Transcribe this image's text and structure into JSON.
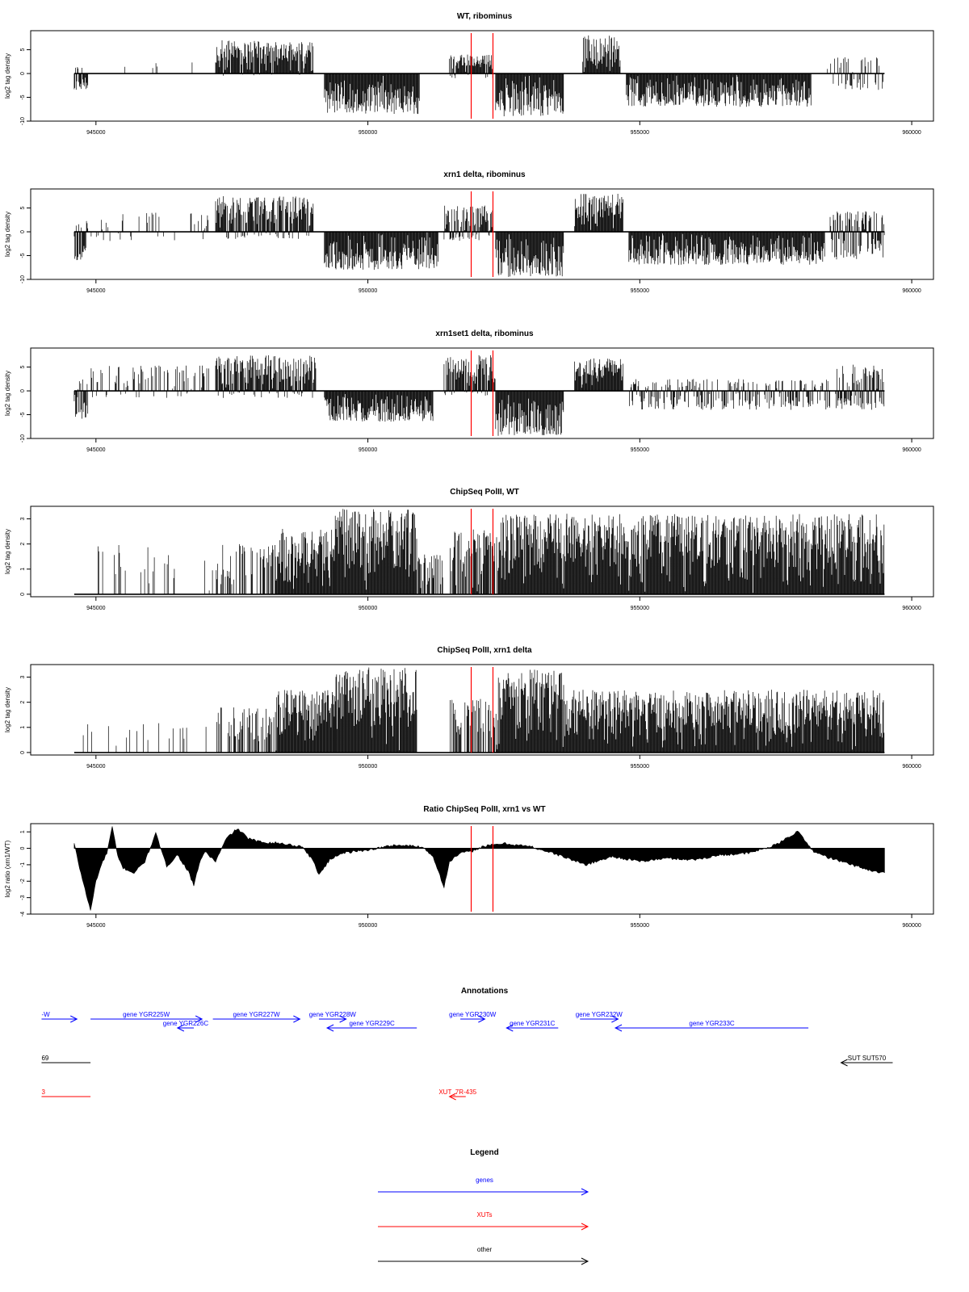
{
  "colors": {
    "axis": "#000000",
    "data": "#000000",
    "marker": "#ff0000",
    "genes": "#0000ff",
    "xuts": "#ff0000",
    "other": "#000000"
  },
  "chart_data": [
    {
      "type": "bar",
      "title": "WT, ribominus",
      "ylabel": "log2 tag density",
      "xlim": [
        943800,
        960400
      ],
      "ylim": [
        -10,
        9
      ],
      "yticks": [
        -10,
        -5,
        0,
        5
      ],
      "xticks": [
        "945000",
        "950000",
        "955000",
        "960000"
      ],
      "marker_lines_x": [
        951900,
        952300
      ],
      "segments": [
        {
          "x0": 944600,
          "x1": 944850,
          "lo": -3.5,
          "hi": 1.5
        },
        {
          "x0": 945450,
          "x1": 947150,
          "lo": 0,
          "hi": 2.5,
          "density": 0.06
        },
        {
          "x0": 947200,
          "x1": 949000,
          "lo": -0.5,
          "hi": 7
        },
        {
          "x0": 949200,
          "x1": 950950,
          "lo": -8.5,
          "hi": 0
        },
        {
          "x0": 951500,
          "x1": 952300,
          "lo": -1,
          "hi": 4
        },
        {
          "x0": 952350,
          "x1": 953600,
          "lo": -9,
          "hi": 0
        },
        {
          "x0": 953950,
          "x1": 954650,
          "lo": 0,
          "hi": 8
        },
        {
          "x0": 954750,
          "x1": 958150,
          "lo": -7,
          "hi": 0
        },
        {
          "x0": 958450,
          "x1": 959500,
          "lo": -3.5,
          "hi": 3.5,
          "density": 0.5
        }
      ]
    },
    {
      "type": "bar",
      "title": "xrn1 delta, ribominus",
      "ylabel": "log2 tag density",
      "xlim": [
        943800,
        960400
      ],
      "ylim": [
        -10,
        9
      ],
      "yticks": [
        -10,
        -5,
        0,
        5
      ],
      "xticks": [
        "945000",
        "950000",
        "955000",
        "960000"
      ],
      "marker_lines_x": [
        951900,
        952300
      ],
      "segments": [
        {
          "x0": 944600,
          "x1": 944850,
          "lo": -6,
          "hi": 2.5
        },
        {
          "x0": 944900,
          "x1": 947100,
          "lo": -2,
          "hi": 4,
          "density": 0.22
        },
        {
          "x0": 947200,
          "x1": 949000,
          "lo": -1.5,
          "hi": 7.5
        },
        {
          "x0": 949200,
          "x1": 951300,
          "lo": -8,
          "hi": 0
        },
        {
          "x0": 951400,
          "x1": 952300,
          "lo": -2,
          "hi": 5.5
        },
        {
          "x0": 952350,
          "x1": 953600,
          "lo": -9.5,
          "hi": 0
        },
        {
          "x0": 953800,
          "x1": 954700,
          "lo": 0,
          "hi": 8
        },
        {
          "x0": 954800,
          "x1": 958400,
          "lo": -7,
          "hi": 0
        },
        {
          "x0": 958500,
          "x1": 959500,
          "lo": -6,
          "hi": 4.5
        }
      ]
    },
    {
      "type": "bar",
      "title": "xrn1set1 delta, ribominus",
      "ylabel": "log2 tag density",
      "xlim": [
        943800,
        960400
      ],
      "ylim": [
        -10,
        9
      ],
      "yticks": [
        -10,
        -5,
        0,
        5
      ],
      "xticks": [
        "945000",
        "950000",
        "955000",
        "960000"
      ],
      "marker_lines_x": [
        951900,
        952300
      ],
      "segments": [
        {
          "x0": 944600,
          "x1": 944850,
          "lo": -6,
          "hi": 2.5
        },
        {
          "x0": 944900,
          "x1": 947100,
          "lo": -1.5,
          "hi": 5.5,
          "density": 0.35
        },
        {
          "x0": 947200,
          "x1": 949050,
          "lo": -1.5,
          "hi": 7.5
        },
        {
          "x0": 949200,
          "x1": 951200,
          "lo": -6.5,
          "hi": 0
        },
        {
          "x0": 951400,
          "x1": 952350,
          "lo": -1,
          "hi": 7.5
        },
        {
          "x0": 952350,
          "x1": 953600,
          "lo": -9.5,
          "hi": 0
        },
        {
          "x0": 953800,
          "x1": 954700,
          "lo": 0,
          "hi": 7
        },
        {
          "x0": 954800,
          "x1": 958500,
          "lo": -4,
          "hi": 2.5,
          "density": 0.7
        },
        {
          "x0": 958600,
          "x1": 959500,
          "lo": -4,
          "hi": 5.5
        }
      ]
    },
    {
      "type": "bar",
      "title": "ChipSeq PolII, WT",
      "ylabel": "log2 tag density",
      "xlim": [
        943800,
        960400
      ],
      "ylim": [
        -0.1,
        3.5
      ],
      "yticks": [
        0.0,
        1.0,
        2.0,
        3.0
      ],
      "xticks": [
        "945000",
        "950000",
        "955000",
        "960000"
      ],
      "marker_lines_x": [
        951900,
        952300
      ],
      "segments": [
        {
          "x0": 944600,
          "x1": 947200,
          "lo": 0,
          "hi": 2,
          "density": 0.09
        },
        {
          "x0": 947200,
          "x1": 948300,
          "lo": 0,
          "hi": 2,
          "density": 0.45
        },
        {
          "x0": 948300,
          "x1": 949400,
          "lo": 0,
          "hi": 2.6
        },
        {
          "x0": 949400,
          "x1": 950900,
          "lo": 0,
          "hi": 3.4
        },
        {
          "x0": 950900,
          "x1": 951400,
          "lo": 0,
          "hi": 1.6,
          "density": 0.5
        },
        {
          "x0": 951500,
          "x1": 952400,
          "lo": 0,
          "hi": 2.6,
          "density": 0.7
        },
        {
          "x0": 952400,
          "x1": 959500,
          "lo": 0,
          "hi": 3.2
        }
      ]
    },
    {
      "type": "bar",
      "title": "ChipSeq PolII, xrn1 delta",
      "ylabel": "log2 tag density",
      "xlim": [
        943800,
        960400
      ],
      "ylim": [
        -0.1,
        3.5
      ],
      "yticks": [
        0.0,
        1.0,
        2.0,
        3.0
      ],
      "xticks": [
        "945000",
        "950000",
        "955000",
        "960000"
      ],
      "marker_lines_x": [
        951900,
        952300
      ],
      "segments": [
        {
          "x0": 944600,
          "x1": 947200,
          "lo": 0,
          "hi": 1.2,
          "density": 0.08
        },
        {
          "x0": 947200,
          "x1": 948300,
          "lo": 0,
          "hi": 1.8,
          "density": 0.5
        },
        {
          "x0": 948300,
          "x1": 949400,
          "lo": 0,
          "hi": 2.5
        },
        {
          "x0": 949400,
          "x1": 950900,
          "lo": 0,
          "hi": 3.4
        },
        {
          "x0": 951500,
          "x1": 952400,
          "lo": 0,
          "hi": 2.2,
          "density": 0.6
        },
        {
          "x0": 952400,
          "x1": 953600,
          "lo": 0,
          "hi": 3.3
        },
        {
          "x0": 953600,
          "x1": 959500,
          "lo": 0,
          "hi": 2.5
        }
      ]
    },
    {
      "type": "area",
      "title": "Ratio ChipSeq PolII, xrn1 vs WT",
      "ylabel": "log2 ratio (xrn1/WT)",
      "xlim": [
        943800,
        960400
      ],
      "ylim": [
        -4,
        1.5
      ],
      "yticks": [
        -4,
        -3,
        -2,
        -1,
        0,
        1
      ],
      "xticks": [
        "945000",
        "950000",
        "955000",
        "960000"
      ],
      "marker_lines_x": [
        951900,
        952300
      ],
      "profile": {
        "x": [
          944600,
          944700,
          944800,
          944900,
          945000,
          945100,
          945200,
          945300,
          945400,
          945500,
          945700,
          945900,
          946100,
          946300,
          946500,
          946700,
          946800,
          946900,
          947000,
          947200,
          947400,
          947600,
          947800,
          948000,
          948400,
          948800,
          949000,
          949100,
          949300,
          949500,
          950000,
          950500,
          951000,
          951200,
          951300,
          951400,
          951500,
          951700,
          951900,
          952100,
          952300,
          952500,
          953000,
          953500,
          954000,
          954500,
          955000,
          955500,
          956000,
          956500,
          957000,
          957500,
          957800,
          957900,
          958000,
          958200,
          958500,
          959000,
          959300,
          959500
        ],
        "y": [
          0.3,
          -1.2,
          -2.5,
          -3.8,
          -2.0,
          -1.0,
          -0.3,
          1.3,
          -0.5,
          -1.2,
          -1.5,
          -0.8,
          0.9,
          -1.1,
          -0.4,
          -1.4,
          -2.3,
          -0.9,
          -0.2,
          -0.8,
          0.6,
          1.2,
          0.6,
          0.4,
          0.3,
          0.1,
          -0.8,
          -1.6,
          -0.7,
          -0.3,
          -0.1,
          0.2,
          0.1,
          -0.5,
          -1.4,
          -2.4,
          -0.8,
          -0.3,
          -0.2,
          0.1,
          0.2,
          0.3,
          0.1,
          -0.4,
          -1.0,
          -0.5,
          -0.8,
          -0.6,
          -0.7,
          -0.4,
          -0.3,
          0.2,
          0.8,
          1.1,
          0.6,
          -0.2,
          -0.6,
          -1.1,
          -1.4,
          -1.5
        ]
      }
    }
  ],
  "annotations": {
    "title": "Annotations",
    "genes": [
      {
        "label": "-W",
        "x0": 944000,
        "x1": 944650,
        "dir": "right",
        "row": 1
      },
      {
        "label": "gene YGR225W",
        "x0": 944900,
        "x1": 946950,
        "dir": "right",
        "row": 1
      },
      {
        "label": "gene YGR226C",
        "x0": 946500,
        "x1": 946800,
        "dir": "left",
        "row": 2
      },
      {
        "label": "gene YGR227W",
        "x0": 947150,
        "x1": 948750,
        "dir": "right",
        "row": 1
      },
      {
        "label": "gene YGR228W",
        "x0": 949100,
        "x1": 949600,
        "dir": "right",
        "row": 1
      },
      {
        "label": "gene YGR229C",
        "x0": 949250,
        "x1": 950900,
        "dir": "left",
        "row": 2
      },
      {
        "label": "gene YGR230W",
        "x0": 951700,
        "x1": 952150,
        "dir": "right",
        "row": 1
      },
      {
        "label": "gene YGR231C",
        "x0": 952550,
        "x1": 953500,
        "dir": "left",
        "row": 2
      },
      {
        "label": "gene YGR232W",
        "x0": 953900,
        "x1": 954600,
        "dir": "right",
        "row": 1
      },
      {
        "label": "gene YGR233C",
        "x0": 954550,
        "x1": 958100,
        "dir": "left",
        "row": 2
      }
    ],
    "other": [
      {
        "label": "69",
        "x0": 944000,
        "x1": 944900,
        "dir": "none"
      },
      {
        "label": "SUT SUT570",
        "x0": 958700,
        "x1": 959650,
        "dir": "left"
      }
    ],
    "xuts": [
      {
        "label": "3",
        "x0": 944000,
        "x1": 944900,
        "dir": "none"
      },
      {
        "label": "XUT_7R-435",
        "x0": 951500,
        "x1": 951800,
        "dir": "left"
      }
    ]
  },
  "legend": {
    "title": "Legend",
    "items": [
      {
        "label": "genes",
        "color": "#0000ff"
      },
      {
        "label": "XUTs",
        "color": "#ff0000"
      },
      {
        "label": "other",
        "color": "#000000"
      }
    ]
  }
}
